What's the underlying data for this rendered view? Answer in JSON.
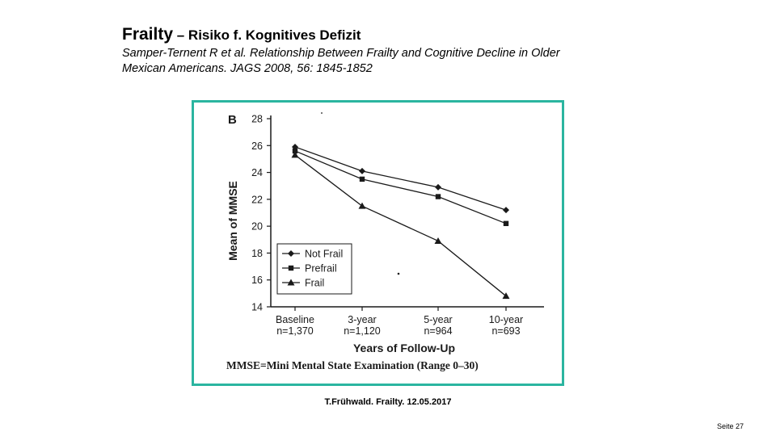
{
  "slide": {
    "title_main": "Frailty",
    "title_rest": " – Risiko f. Kognitives Defizit",
    "citation_line1": "Samper-Ternent R et al. Relationship Between Frailty and Cognitive Decline in Older",
    "citation_line2": "Mexican Americans. JAGS 2008, 56: 1845-1852",
    "footer": "T.Frühwald. Frailty. 12.05.2017",
    "page_number": "Seite 27"
  },
  "colors": {
    "frame": "#2bb5a0",
    "ink": "#1a1a1a"
  },
  "chart_data": {
    "type": "line",
    "panel_label": "B",
    "categories": [
      {
        "label": "Baseline",
        "n": "n=1,370"
      },
      {
        "label": "3-year",
        "n": "n=1,120"
      },
      {
        "label": "5-year",
        "n": "n=964"
      },
      {
        "label": "10-year",
        "n": "n=693"
      }
    ],
    "series": [
      {
        "name": "Not Frail",
        "marker": "diamond",
        "values": [
          25.9,
          24.1,
          22.9,
          21.2
        ]
      },
      {
        "name": "Prefrail",
        "marker": "square",
        "values": [
          25.6,
          23.5,
          22.2,
          20.2
        ]
      },
      {
        "name": "Frail",
        "marker": "triangle",
        "values": [
          25.3,
          21.5,
          18.9,
          14.8
        ]
      }
    ],
    "ylim": [
      14,
      28
    ],
    "yticks": [
      14,
      16,
      18,
      20,
      22,
      24,
      26,
      28
    ],
    "ylabel": "Mean of MMSE",
    "xlabel": "Years of Follow-Up",
    "caption": "MMSE=Mini Mental State Examination (Range 0–30)",
    "legend_position": "bottom-left"
  }
}
